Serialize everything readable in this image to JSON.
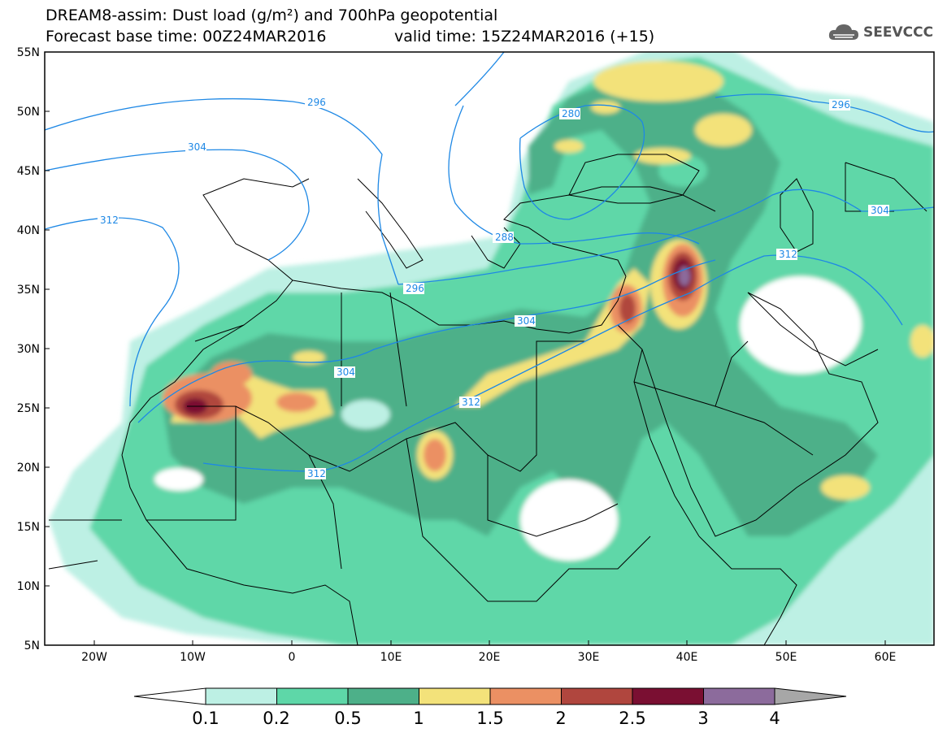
{
  "header": {
    "title": "DREAM8-assim: Dust load (g/m²) and 700hPa geopotential",
    "base_time": "Forecast base time: 00Z24MAR2016",
    "valid_time": "valid time: 15Z24MAR2016 (+15)",
    "logo_text": "SEEVCCC"
  },
  "map": {
    "lon_range": [
      -25,
      65
    ],
    "lat_range": [
      5,
      55
    ],
    "lat_labels": [
      "55N",
      "50N",
      "45N",
      "40N",
      "35N",
      "30N",
      "25N",
      "20N",
      "15N",
      "10N",
      "5N"
    ],
    "lon_labels": [
      "20W",
      "10W",
      "0",
      "10E",
      "20E",
      "30E",
      "40E",
      "50E",
      "60E"
    ],
    "contour_labels": [
      "296",
      "304",
      "312",
      "280",
      "288",
      "296",
      "304",
      "312",
      "304",
      "312",
      "312",
      "296",
      "304"
    ]
  },
  "legend": {
    "levels": [
      "0.1",
      "0.2",
      "0.5",
      "1",
      "1.5",
      "2",
      "2.5",
      "3",
      "4"
    ],
    "colors": [
      "#ffffff",
      "#bdf0e4",
      "#5ed7a8",
      "#4db089",
      "#f3e27a",
      "#eb9063",
      "#b0463e",
      "#7a0f32",
      "#8c6b9c",
      "#a7a7a7"
    ]
  }
}
